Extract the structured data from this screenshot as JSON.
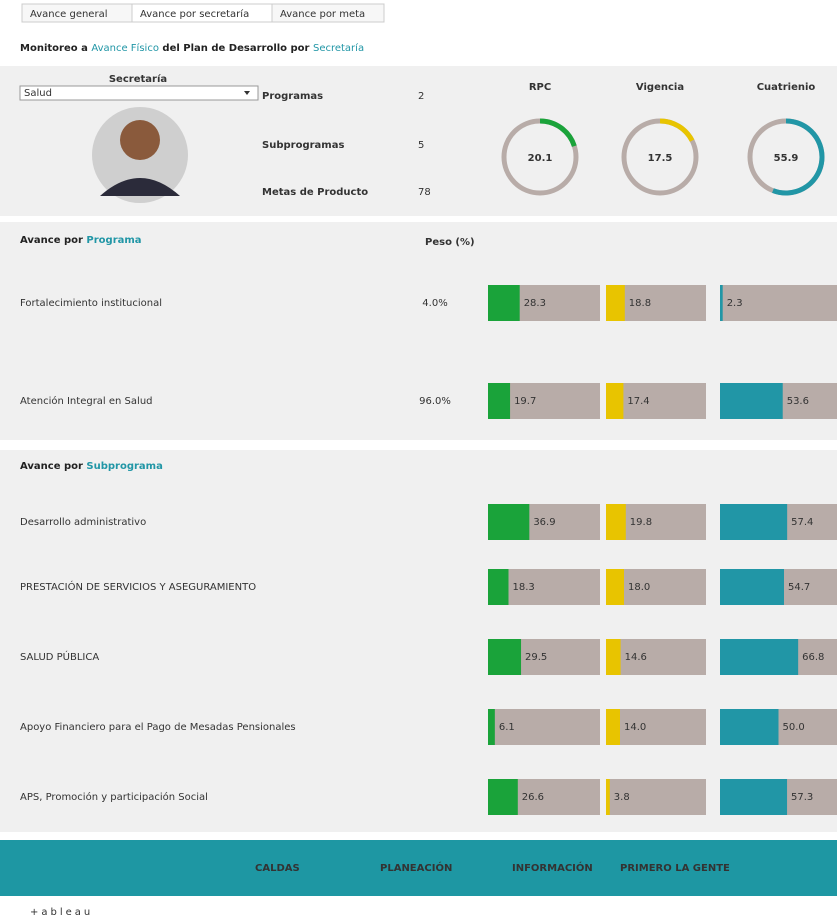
{
  "tabs": [
    "Avance general",
    "Avance por secretaría",
    "Avance por meta"
  ],
  "title": [
    "Monitoreo a ",
    "Avance Físico",
    " del Plan de Desarrollo por ",
    "Secretaría"
  ],
  "filter": {
    "label": "Secretaría",
    "value": "Salud"
  },
  "summary": [
    {
      "label": "Programas",
      "value": 2
    },
    {
      "label": "Subprogramas",
      "value": 5
    },
    {
      "label": "Metas de Producto",
      "value": 78
    }
  ],
  "scale": [
    0,
    100
  ],
  "measures": [
    {
      "name": "RPC",
      "color": "#1aa33a",
      "total": 20.1
    },
    {
      "name": "Vigencia",
      "color": "#e8c400",
      "total": 17.5
    },
    {
      "name": "Cuatrienio",
      "color": "#2196a6",
      "total": 55.9
    }
  ],
  "programs": {
    "title": [
      "Avance por ",
      "Programa"
    ],
    "weight_header": "Peso (%)",
    "rows": [
      {
        "name": "Fortalecimiento institucional",
        "weight": 4.0,
        "weight_label": "4.0%",
        "values": [
          28.3,
          18.8,
          2.3
        ],
        "value_labels": [
          "28.3",
          "18.8",
          "2.3"
        ]
      },
      {
        "name": "Atención Integral en Salud",
        "weight": 96.0,
        "weight_label": "96.0%",
        "values": [
          19.7,
          17.4,
          53.6
        ],
        "value_labels": [
          "19.7",
          "17.4",
          "53.6"
        ]
      }
    ]
  },
  "subprograms": {
    "title": [
      "Avance por ",
      "Subprograma"
    ],
    "rows": [
      {
        "name": "Desarrollo administrativo",
        "values": [
          36.9,
          19.8,
          57.4
        ],
        "value_labels": [
          "36.9",
          "19.8",
          "57.4"
        ]
      },
      {
        "name": "PRESTACIÓN DE SERVICIOS Y ASEGURAMIENTO",
        "values": [
          18.3,
          18.0,
          54.7
        ],
        "value_labels": [
          "18.3",
          "18.0",
          "54.7"
        ]
      },
      {
        "name": "SALUD PÚBLICA",
        "values": [
          29.5,
          14.6,
          66.8
        ],
        "value_labels": [
          "29.5",
          "14.6",
          "66.8"
        ]
      },
      {
        "name": "Apoyo Financiero para el Pago de Mesadas Pensionales",
        "values": [
          6.1,
          14.0,
          50.0
        ],
        "value_labels": [
          "6.1",
          "14.0",
          "50.0"
        ]
      },
      {
        "name": "APS, Promoción y participación Social",
        "values": [
          26.6,
          3.8,
          57.3
        ],
        "value_labels": [
          "26.6",
          "3.8",
          "57.3"
        ]
      }
    ]
  },
  "footer": [
    "CALDAS",
    "PLANEACIÓN",
    "INFORMACIÓN",
    "PRIMERO LA GENTE"
  ],
  "brand": "+ableau"
}
